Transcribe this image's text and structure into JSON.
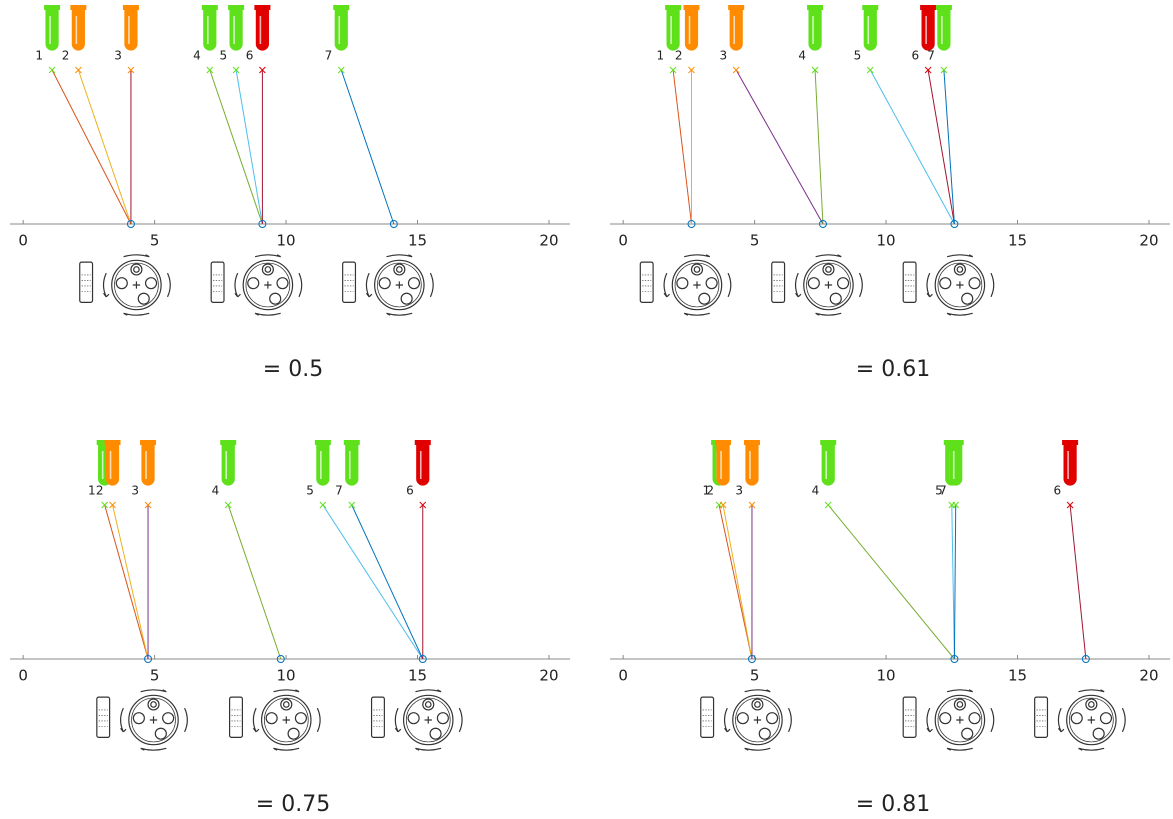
{
  "chart_data": [
    {
      "type": "cluster",
      "xlim": [
        -0.5,
        20.8
      ],
      "xticks": [
        0,
        5,
        10,
        15,
        20
      ],
      "tubes": {
        "labels": [
          "1",
          "2",
          "3",
          "4",
          "5",
          "6",
          "7"
        ],
        "x": [
          1.1,
          2.1,
          4.1,
          7.1,
          8.1,
          9.1,
          12.1
        ],
        "colors": [
          "#5ee01a",
          "#ff8c00",
          "#ff8c00",
          "#5ee01a",
          "#5ee01a",
          "#e00000",
          "#5ee01a"
        ],
        "line_colors": [
          "#D95319",
          "#EDB120",
          "#A2142F",
          "#77AC30",
          "#4DBEEE",
          "#A2142F",
          "#0072BD"
        ],
        "assignments": [
          0,
          0,
          0,
          1,
          1,
          1,
          2
        ]
      },
      "centers": [
        4.1,
        9.1,
        14.1
      ],
      "center_color": "#0072BD",
      "caption": "= 0.5"
    },
    {
      "type": "cluster",
      "xlim": [
        -0.5,
        20.8
      ],
      "xticks": [
        0,
        5,
        10,
        15,
        20
      ],
      "tubes": {
        "labels": [
          "1",
          "2",
          "3",
          "4",
          "5",
          "6",
          "7"
        ],
        "x": [
          1.9,
          2.6,
          4.3,
          7.3,
          9.4,
          11.6,
          12.2
        ],
        "colors": [
          "#5ee01a",
          "#ff8c00",
          "#ff8c00",
          "#5ee01a",
          "#5ee01a",
          "#e00000",
          "#5ee01a"
        ],
        "line_colors": [
          "#D95319",
          "#EDB120",
          "#7E2F8E",
          "#77AC30",
          "#4DBEEE",
          "#A2142F",
          "#0072BD"
        ],
        "assignments": [
          0,
          0,
          1,
          1,
          2,
          2,
          2
        ]
      },
      "centers": [
        2.6,
        7.6,
        12.6
      ],
      "center_color": "#0072BD",
      "caption": "= 0.61"
    },
    {
      "type": "cluster",
      "xlim": [
        -0.5,
        20.8
      ],
      "xticks": [
        0,
        5,
        10,
        15,
        20
      ],
      "tubes": {
        "labels": [
          "1",
          "2",
          "3",
          "4",
          "5",
          "7",
          "6"
        ],
        "x": [
          3.1,
          3.4,
          4.75,
          7.8,
          11.4,
          12.5,
          15.2
        ],
        "colors": [
          "#5ee01a",
          "#ff8c00",
          "#ff8c00",
          "#5ee01a",
          "#5ee01a",
          "#5ee01a",
          "#e00000"
        ],
        "line_colors": [
          "#D95319",
          "#EDB120",
          "#7E2F8E",
          "#77AC30",
          "#4DBEEE",
          "#0072BD",
          "#A2142F"
        ],
        "assignments": [
          0,
          0,
          0,
          1,
          2,
          2,
          2
        ]
      },
      "centers": [
        4.75,
        9.8,
        15.2
      ],
      "center_color": "#0072BD",
      "caption": "= 0.75"
    },
    {
      "type": "cluster",
      "xlim": [
        -0.5,
        20.8
      ],
      "xticks": [
        0,
        5,
        10,
        15,
        20
      ],
      "tubes": {
        "labels": [
          "1",
          "2",
          "3",
          "4",
          "5",
          "7",
          "6"
        ],
        "x": [
          3.65,
          3.8,
          4.9,
          7.8,
          12.5,
          12.65,
          17.0
        ],
        "colors": [
          "#5ee01a",
          "#ff8c00",
          "#ff8c00",
          "#5ee01a",
          "#5ee01a",
          "#5ee01a",
          "#e00000"
        ],
        "line_colors": [
          "#D95319",
          "#EDB120",
          "#7E2F8E",
          "#77AC30",
          "#4DBEEE",
          "#0072BD",
          "#A2142F"
        ],
        "assignments": [
          0,
          0,
          0,
          1,
          1,
          1,
          2
        ]
      },
      "centers": [
        4.9,
        12.6,
        17.6
      ],
      "center_color": "#0072BD",
      "caption": "= 0.81"
    }
  ]
}
